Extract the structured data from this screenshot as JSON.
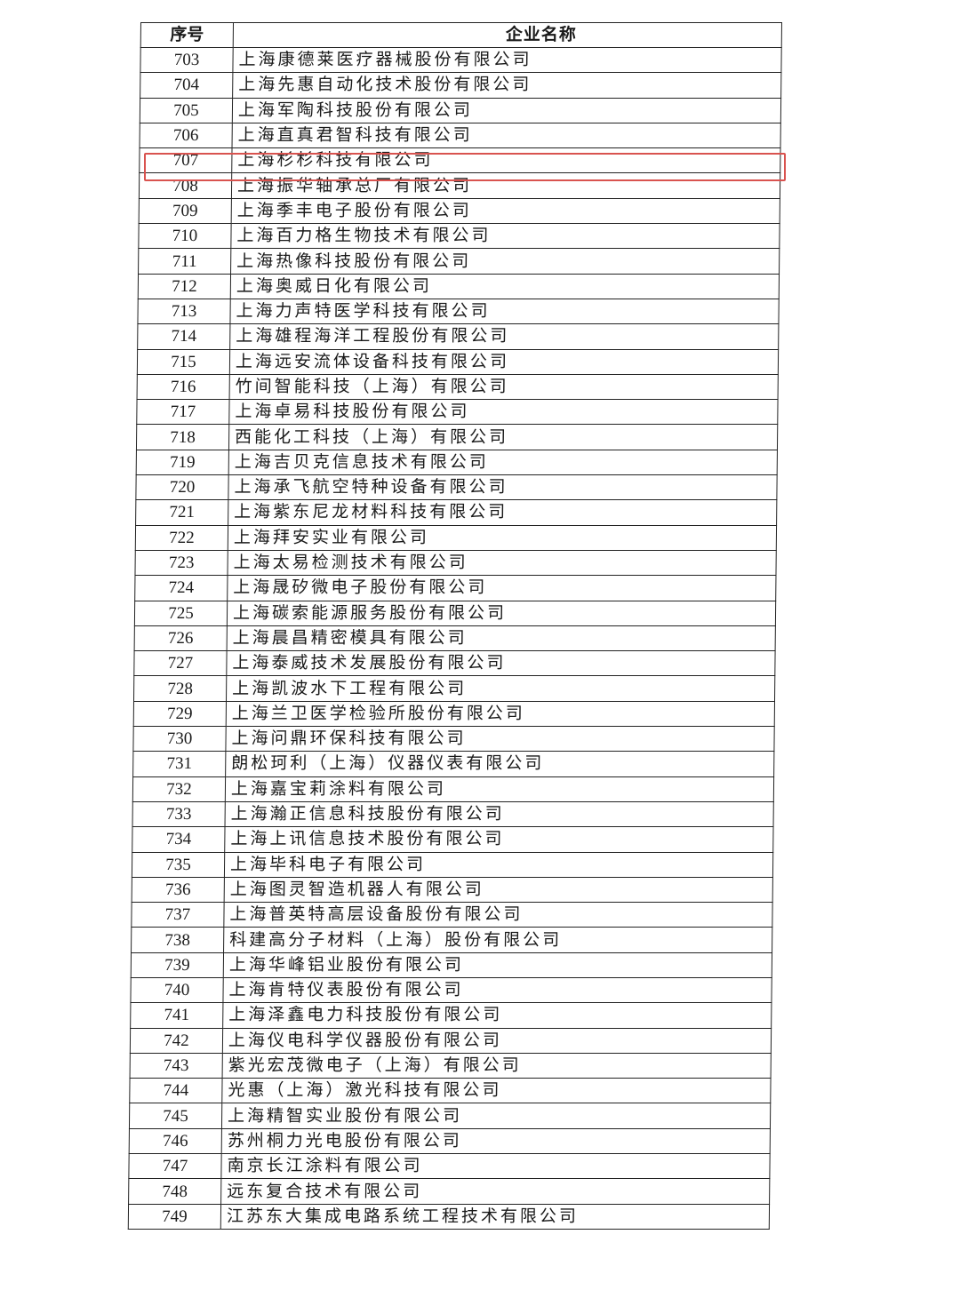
{
  "header": {
    "col_index": "序号",
    "col_name": "企业名称"
  },
  "highlight_color": "#d9534f",
  "highlighted_index": "707",
  "rows": [
    {
      "no": "703",
      "name": "上海康德莱医疗器械股份有限公司"
    },
    {
      "no": "704",
      "name": "上海先惠自动化技术股份有限公司"
    },
    {
      "no": "705",
      "name": "上海军陶科技股份有限公司"
    },
    {
      "no": "706",
      "name": "上海直真君智科技有限公司"
    },
    {
      "no": "707",
      "name": "上海杉杉科技有限公司"
    },
    {
      "no": "708",
      "name": "上海振华轴承总厂有限公司"
    },
    {
      "no": "709",
      "name": "上海季丰电子股份有限公司"
    },
    {
      "no": "710",
      "name": "上海百力格生物技术有限公司"
    },
    {
      "no": "711",
      "name": "上海热像科技股份有限公司"
    },
    {
      "no": "712",
      "name": "上海奥威日化有限公司"
    },
    {
      "no": "713",
      "name": "上海力声特医学科技有限公司"
    },
    {
      "no": "714",
      "name": "上海雄程海洋工程股份有限公司"
    },
    {
      "no": "715",
      "name": "上海远安流体设备科技有限公司"
    },
    {
      "no": "716",
      "name": "竹间智能科技（上海）有限公司"
    },
    {
      "no": "717",
      "name": "上海卓易科技股份有限公司"
    },
    {
      "no": "718",
      "name": "西能化工科技（上海）有限公司"
    },
    {
      "no": "719",
      "name": "上海吉贝克信息技术有限公司"
    },
    {
      "no": "720",
      "name": "上海承飞航空特种设备有限公司"
    },
    {
      "no": "721",
      "name": "上海紫东尼龙材料科技有限公司"
    },
    {
      "no": "722",
      "name": "上海拜安实业有限公司"
    },
    {
      "no": "723",
      "name": "上海太易检测技术有限公司"
    },
    {
      "no": "724",
      "name": "上海晟矽微电子股份有限公司"
    },
    {
      "no": "725",
      "name": "上海碳索能源服务股份有限公司"
    },
    {
      "no": "726",
      "name": "上海晨昌精密模具有限公司"
    },
    {
      "no": "727",
      "name": "上海泰威技术发展股份有限公司"
    },
    {
      "no": "728",
      "name": "上海凯波水下工程有限公司"
    },
    {
      "no": "729",
      "name": "上海兰卫医学检验所股份有限公司"
    },
    {
      "no": "730",
      "name": "上海问鼎环保科技有限公司"
    },
    {
      "no": "731",
      "name": "朗松珂利（上海）仪器仪表有限公司"
    },
    {
      "no": "732",
      "name": "上海嘉宝莉涂料有限公司"
    },
    {
      "no": "733",
      "name": "上海瀚正信息科技股份有限公司"
    },
    {
      "no": "734",
      "name": "上海上讯信息技术股份有限公司"
    },
    {
      "no": "735",
      "name": "上海毕科电子有限公司"
    },
    {
      "no": "736",
      "name": "上海图灵智造机器人有限公司"
    },
    {
      "no": "737",
      "name": "上海普英特高层设备股份有限公司"
    },
    {
      "no": "738",
      "name": "科建高分子材料（上海）股份有限公司"
    },
    {
      "no": "739",
      "name": "上海华峰铝业股份有限公司"
    },
    {
      "no": "740",
      "name": "上海肯特仪表股份有限公司"
    },
    {
      "no": "741",
      "name": "上海泽鑫电力科技股份有限公司"
    },
    {
      "no": "742",
      "name": "上海仪电科学仪器股份有限公司"
    },
    {
      "no": "743",
      "name": "紫光宏茂微电子（上海）有限公司"
    },
    {
      "no": "744",
      "name": "光惠（上海）激光科技有限公司"
    },
    {
      "no": "745",
      "name": "上海精智实业股份有限公司"
    },
    {
      "no": "746",
      "name": "苏州桐力光电股份有限公司"
    },
    {
      "no": "747",
      "name": "南京长江涂料有限公司"
    },
    {
      "no": "748",
      "name": "远东复合技术有限公司"
    },
    {
      "no": "749",
      "name": "江苏东大集成电路系统工程技术有限公司"
    }
  ]
}
